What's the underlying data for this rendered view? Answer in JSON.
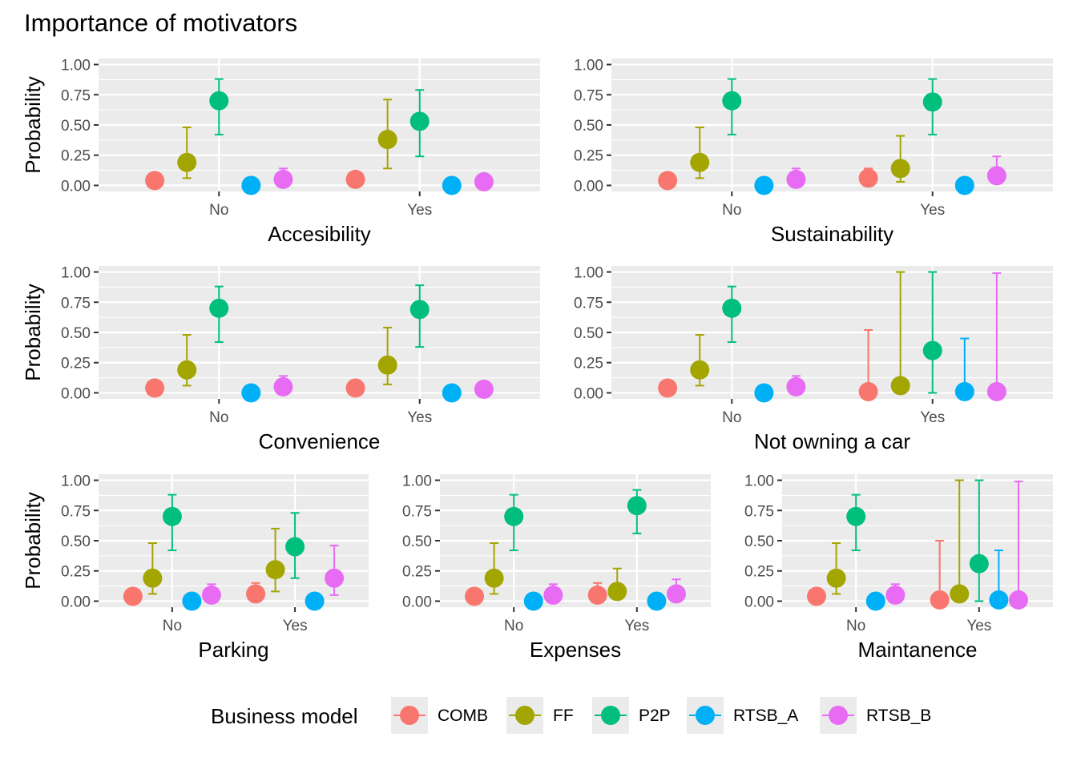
{
  "chart_data": {
    "type": "scatter",
    "title": "Importance of motivators",
    "ylabel": "Probability",
    "ylim": [
      0,
      1
    ],
    "yticks": [
      0,
      0.25,
      0.5,
      0.75,
      1
    ],
    "ytick_labels": [
      "0.00",
      "0.25",
      "0.50",
      "0.75",
      "1.00"
    ],
    "categories": [
      "No",
      "Yes"
    ],
    "grid": true,
    "legend": {
      "title": "Business model",
      "position": "bottom",
      "items": [
        {
          "name": "COMB",
          "color": "#F8766D"
        },
        {
          "name": "FF",
          "color": "#A3A500"
        },
        {
          "name": "P2P",
          "color": "#00BF7D"
        },
        {
          "name": "RTSB_A",
          "color": "#00B0F6"
        },
        {
          "name": "RTSB_B",
          "color": "#E76BF3"
        }
      ]
    },
    "panels": [
      {
        "xlabel": "Accesibility",
        "series": [
          {
            "name": "COMB",
            "values": [
              0.04,
              0.05
            ],
            "lower": [
              0.0,
              0.0
            ],
            "upper": [
              0.04,
              0.1
            ]
          },
          {
            "name": "FF",
            "values": [
              0.19,
              0.38
            ],
            "lower": [
              0.06,
              0.14
            ],
            "upper": [
              0.48,
              0.71
            ]
          },
          {
            "name": "P2P",
            "values": [
              0.7,
              0.53
            ],
            "lower": [
              0.42,
              0.24
            ],
            "upper": [
              0.88,
              0.79
            ]
          },
          {
            "name": "RTSB_A",
            "values": [
              0.0,
              0.0
            ],
            "lower": [
              0.0,
              0.0
            ],
            "upper": [
              0.0,
              0.0
            ]
          },
          {
            "name": "RTSB_B",
            "values": [
              0.05,
              0.03
            ],
            "lower": [
              0.01,
              0.0
            ],
            "upper": [
              0.14,
              0.03
            ]
          }
        ]
      },
      {
        "xlabel": "Sustainability",
        "series": [
          {
            "name": "COMB",
            "values": [
              0.04,
              0.06
            ],
            "lower": [
              0.0,
              0.0
            ],
            "upper": [
              0.04,
              0.14
            ]
          },
          {
            "name": "FF",
            "values": [
              0.19,
              0.14
            ],
            "lower": [
              0.06,
              0.03
            ],
            "upper": [
              0.48,
              0.41
            ]
          },
          {
            "name": "P2P",
            "values": [
              0.7,
              0.69
            ],
            "lower": [
              0.42,
              0.42
            ],
            "upper": [
              0.88,
              0.88
            ]
          },
          {
            "name": "RTSB_A",
            "values": [
              0.0,
              0.0
            ],
            "lower": [
              0.0,
              0.0
            ],
            "upper": [
              0.0,
              0.0
            ]
          },
          {
            "name": "RTSB_B",
            "values": [
              0.05,
              0.08
            ],
            "lower": [
              0.01,
              0.02
            ],
            "upper": [
              0.14,
              0.24
            ]
          }
        ]
      },
      {
        "xlabel": "Convenience",
        "series": [
          {
            "name": "COMB",
            "values": [
              0.04,
              0.04
            ],
            "lower": [
              0.0,
              0.0
            ],
            "upper": [
              0.04,
              0.04
            ]
          },
          {
            "name": "FF",
            "values": [
              0.19,
              0.23
            ],
            "lower": [
              0.06,
              0.07
            ],
            "upper": [
              0.48,
              0.54
            ]
          },
          {
            "name": "P2P",
            "values": [
              0.7,
              0.69
            ],
            "lower": [
              0.42,
              0.38
            ],
            "upper": [
              0.88,
              0.89
            ]
          },
          {
            "name": "RTSB_A",
            "values": [
              0.0,
              0.0
            ],
            "lower": [
              0.0,
              0.0
            ],
            "upper": [
              0.0,
              0.0
            ]
          },
          {
            "name": "RTSB_B",
            "values": [
              0.05,
              0.03
            ],
            "lower": [
              0.01,
              0.0
            ],
            "upper": [
              0.14,
              0.03
            ]
          }
        ]
      },
      {
        "xlabel": "Not owning a car",
        "series": [
          {
            "name": "COMB",
            "values": [
              0.04,
              0.01
            ],
            "lower": [
              0.0,
              0.0
            ],
            "upper": [
              0.04,
              0.52
            ]
          },
          {
            "name": "FF",
            "values": [
              0.19,
              0.06
            ],
            "lower": [
              0.06,
              0.0
            ],
            "upper": [
              0.48,
              1.0
            ]
          },
          {
            "name": "P2P",
            "values": [
              0.7,
              0.35
            ],
            "lower": [
              0.42,
              0.0
            ],
            "upper": [
              0.88,
              1.0
            ]
          },
          {
            "name": "RTSB_A",
            "values": [
              0.0,
              0.01
            ],
            "lower": [
              0.0,
              0.0
            ],
            "upper": [
              0.0,
              0.45
            ]
          },
          {
            "name": "RTSB_B",
            "values": [
              0.05,
              0.01
            ],
            "lower": [
              0.01,
              0.0
            ],
            "upper": [
              0.14,
              0.99
            ]
          }
        ]
      },
      {
        "xlabel": "Parking",
        "series": [
          {
            "name": "COMB",
            "values": [
              0.04,
              0.06
            ],
            "lower": [
              0.0,
              0.0
            ],
            "upper": [
              0.04,
              0.15
            ]
          },
          {
            "name": "FF",
            "values": [
              0.19,
              0.26
            ],
            "lower": [
              0.06,
              0.08
            ],
            "upper": [
              0.48,
              0.6
            ]
          },
          {
            "name": "P2P",
            "values": [
              0.7,
              0.45
            ],
            "lower": [
              0.42,
              0.19
            ],
            "upper": [
              0.88,
              0.73
            ]
          },
          {
            "name": "RTSB_A",
            "values": [
              0.0,
              0.0
            ],
            "lower": [
              0.0,
              0.0
            ],
            "upper": [
              0.0,
              0.0
            ]
          },
          {
            "name": "RTSB_B",
            "values": [
              0.05,
              0.19
            ],
            "lower": [
              0.01,
              0.05
            ],
            "upper": [
              0.14,
              0.46
            ]
          }
        ]
      },
      {
        "xlabel": "Expenses",
        "series": [
          {
            "name": "COMB",
            "values": [
              0.04,
              0.05
            ],
            "lower": [
              0.0,
              0.0
            ],
            "upper": [
              0.04,
              0.15
            ]
          },
          {
            "name": "FF",
            "values": [
              0.19,
              0.08
            ],
            "lower": [
              0.06,
              0.02
            ],
            "upper": [
              0.48,
              0.27
            ]
          },
          {
            "name": "P2P",
            "values": [
              0.7,
              0.79
            ],
            "lower": [
              0.42,
              0.56
            ],
            "upper": [
              0.88,
              0.92
            ]
          },
          {
            "name": "RTSB_A",
            "values": [
              0.0,
              0.0
            ],
            "lower": [
              0.0,
              0.0
            ],
            "upper": [
              0.0,
              0.0
            ]
          },
          {
            "name": "RTSB_B",
            "values": [
              0.05,
              0.06
            ],
            "lower": [
              0.01,
              0.01
            ],
            "upper": [
              0.14,
              0.18
            ]
          }
        ]
      },
      {
        "xlabel": "Maintanence",
        "series": [
          {
            "name": "COMB",
            "values": [
              0.04,
              0.01
            ],
            "lower": [
              0.0,
              0.0
            ],
            "upper": [
              0.04,
              0.5
            ]
          },
          {
            "name": "FF",
            "values": [
              0.19,
              0.06
            ],
            "lower": [
              0.06,
              0.0
            ],
            "upper": [
              0.48,
              1.0
            ]
          },
          {
            "name": "P2P",
            "values": [
              0.7,
              0.31
            ],
            "lower": [
              0.42,
              0.0
            ],
            "upper": [
              0.88,
              1.0
            ]
          },
          {
            "name": "RTSB_A",
            "values": [
              0.0,
              0.01
            ],
            "lower": [
              0.0,
              0.0
            ],
            "upper": [
              0.0,
              0.42
            ]
          },
          {
            "name": "RTSB_B",
            "values": [
              0.05,
              0.01
            ],
            "lower": [
              0.01,
              0.0
            ],
            "upper": [
              0.14,
              0.99
            ]
          }
        ]
      }
    ]
  }
}
